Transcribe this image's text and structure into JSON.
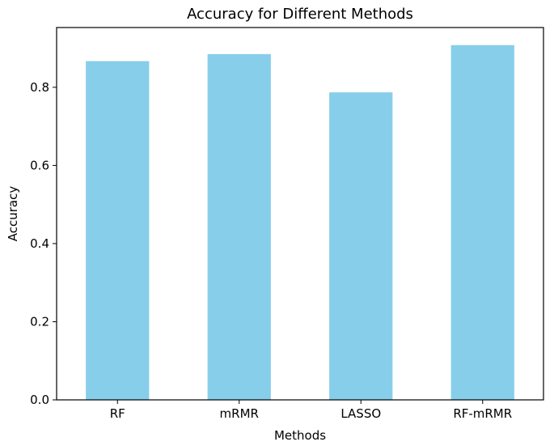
{
  "chart_data": {
    "type": "bar",
    "title": "Accuracy for Different Methods",
    "xlabel": "Methods",
    "ylabel": "Accuracy",
    "categories": [
      "RF",
      "mRMR",
      "LASSO",
      "RF-mRMR"
    ],
    "values": [
      0.867,
      0.885,
      0.787,
      0.908
    ],
    "ylim": [
      0,
      0.953
    ],
    "yticks": [
      0.0,
      0.2,
      0.4,
      0.6,
      0.8
    ],
    "ytick_labels": [
      "0.0",
      "0.2",
      "0.4",
      "0.6",
      "0.8"
    ],
    "grid": false,
    "legend": "none",
    "bar_color": "#87ceeb",
    "axis_color": "#000000"
  }
}
